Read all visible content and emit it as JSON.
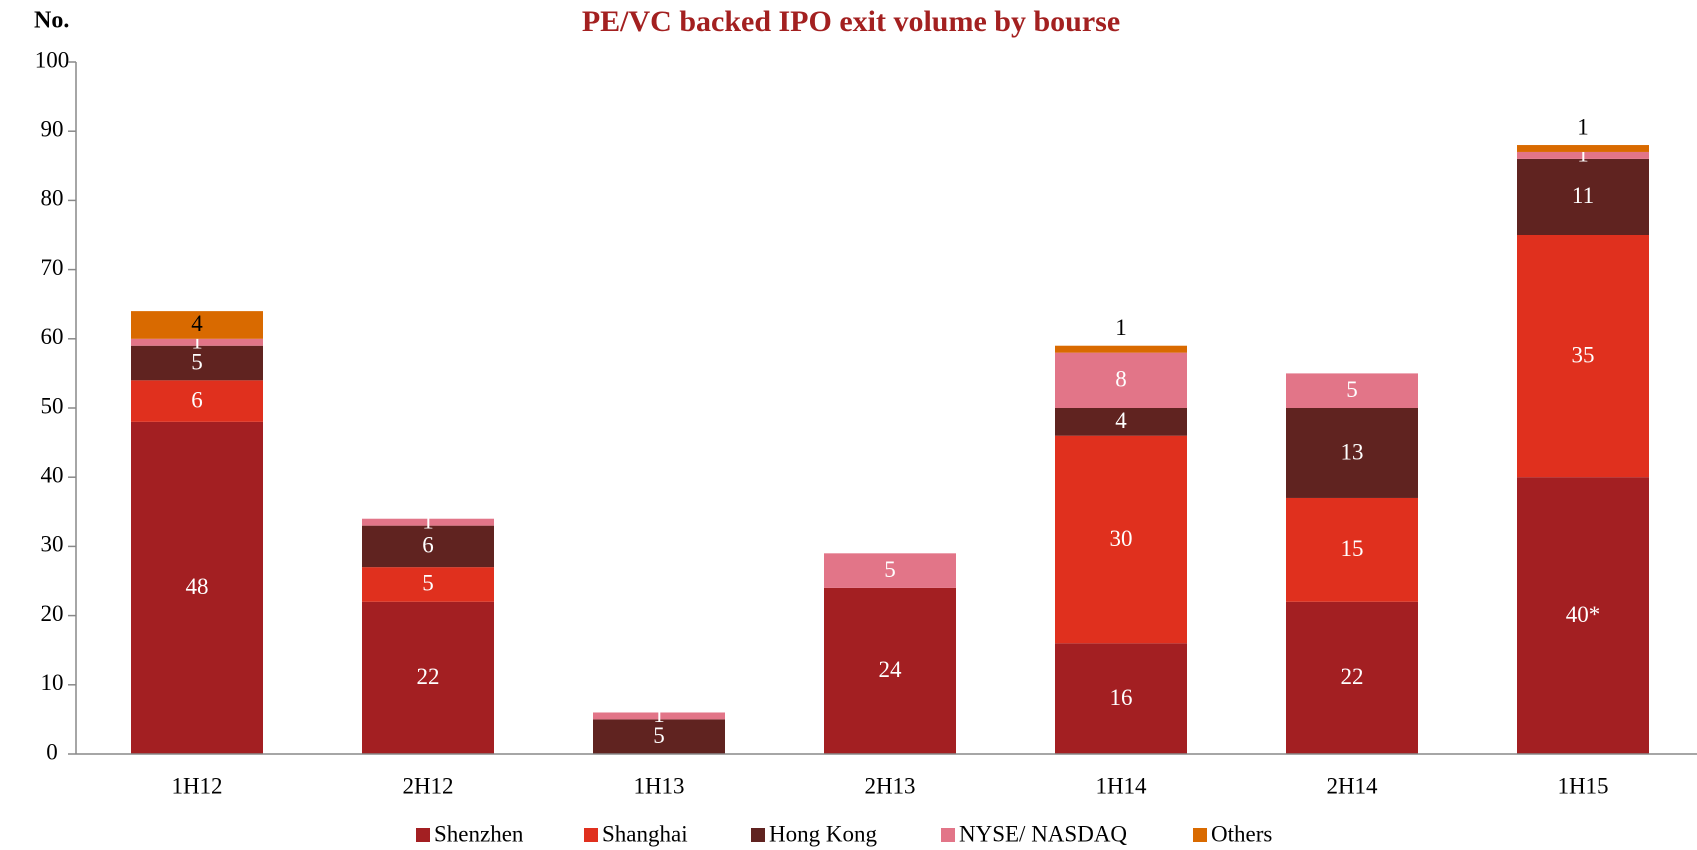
{
  "chart_data": {
    "type": "stacked_bar",
    "title": "PE/VC backed IPO exit volume by bourse",
    "y_label": "No.",
    "categories": [
      "1H12",
      "2H12",
      "1H13",
      "2H13",
      "1H14",
      "2H14",
      "1H15"
    ],
    "series": [
      {
        "name": "Shenzhen",
        "color": "#a31f22",
        "values": [
          48,
          22,
          0,
          24,
          16,
          22,
          40
        ],
        "value_labels": [
          "48",
          "22",
          null,
          "24",
          "16",
          "22",
          "40*"
        ]
      },
      {
        "name": "Shanghai",
        "color": "#e0301e",
        "values": [
          6,
          5,
          0,
          0,
          30,
          15,
          35
        ]
      },
      {
        "name": "Hong Kong",
        "color": "#602320",
        "values": [
          5,
          6,
          5,
          0,
          4,
          13,
          11
        ]
      },
      {
        "name": "NYSE/ NASDAQ",
        "color": "#e27588",
        "values": [
          1,
          1,
          1,
          5,
          8,
          5,
          1
        ]
      },
      {
        "name": "Others",
        "color": "#d96a00",
        "values": [
          4,
          0,
          0,
          0,
          1,
          0,
          1
        ]
      }
    ],
    "ylim": [
      0,
      100
    ],
    "yticks": [
      0,
      10,
      20,
      30,
      40,
      50,
      60,
      70,
      80,
      90,
      100
    ],
    "grid": false,
    "legend": "bottom"
  }
}
